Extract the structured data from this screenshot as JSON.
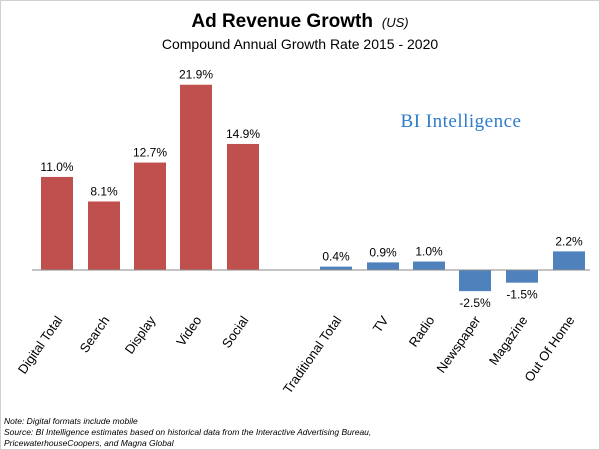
{
  "chart_data": {
    "type": "bar",
    "title": "Ad Revenue Growth",
    "title_unit": "(US)",
    "subtitle": "Compound Annual Growth Rate 2015 - 2020",
    "categories": [
      "Digital Total",
      "Search",
      "Display",
      "Video",
      "Social",
      "Traditional Total",
      "TV",
      "Radio",
      "Newspaper",
      "Magazine",
      "Out Of Home"
    ],
    "values": [
      11.0,
      8.1,
      12.7,
      21.9,
      14.9,
      0.4,
      0.9,
      1.0,
      -2.5,
      -1.5,
      2.2
    ],
    "value_labels": [
      "11.0%",
      "8.1%",
      "12.7%",
      "21.9%",
      "14.9%",
      "0.4%",
      "0.9%",
      "1.0%",
      "-2.5%",
      "-1.5%",
      "2.2%"
    ],
    "groups": [
      {
        "categories": [
          "Digital Total",
          "Search",
          "Display",
          "Video",
          "Social"
        ],
        "color": "#c0504d"
      },
      {
        "categories": [
          "Traditional Total",
          "TV",
          "Radio",
          "Newspaper",
          "Magazine",
          "Out Of Home"
        ],
        "color": "#4f81bd"
      }
    ],
    "ylabel": "",
    "xlabel": "",
    "grid": false,
    "legend": "none"
  },
  "brand": {
    "text": "BI Intelligence",
    "color": "#2e7cc9"
  },
  "notes": [
    "Note: Digital formats include mobile",
    "Source: BI Intelligence estimates based on historical data from the Interactive Advertising Bureau,",
    "PricewaterhouseCoopers, and Magna Global"
  ]
}
